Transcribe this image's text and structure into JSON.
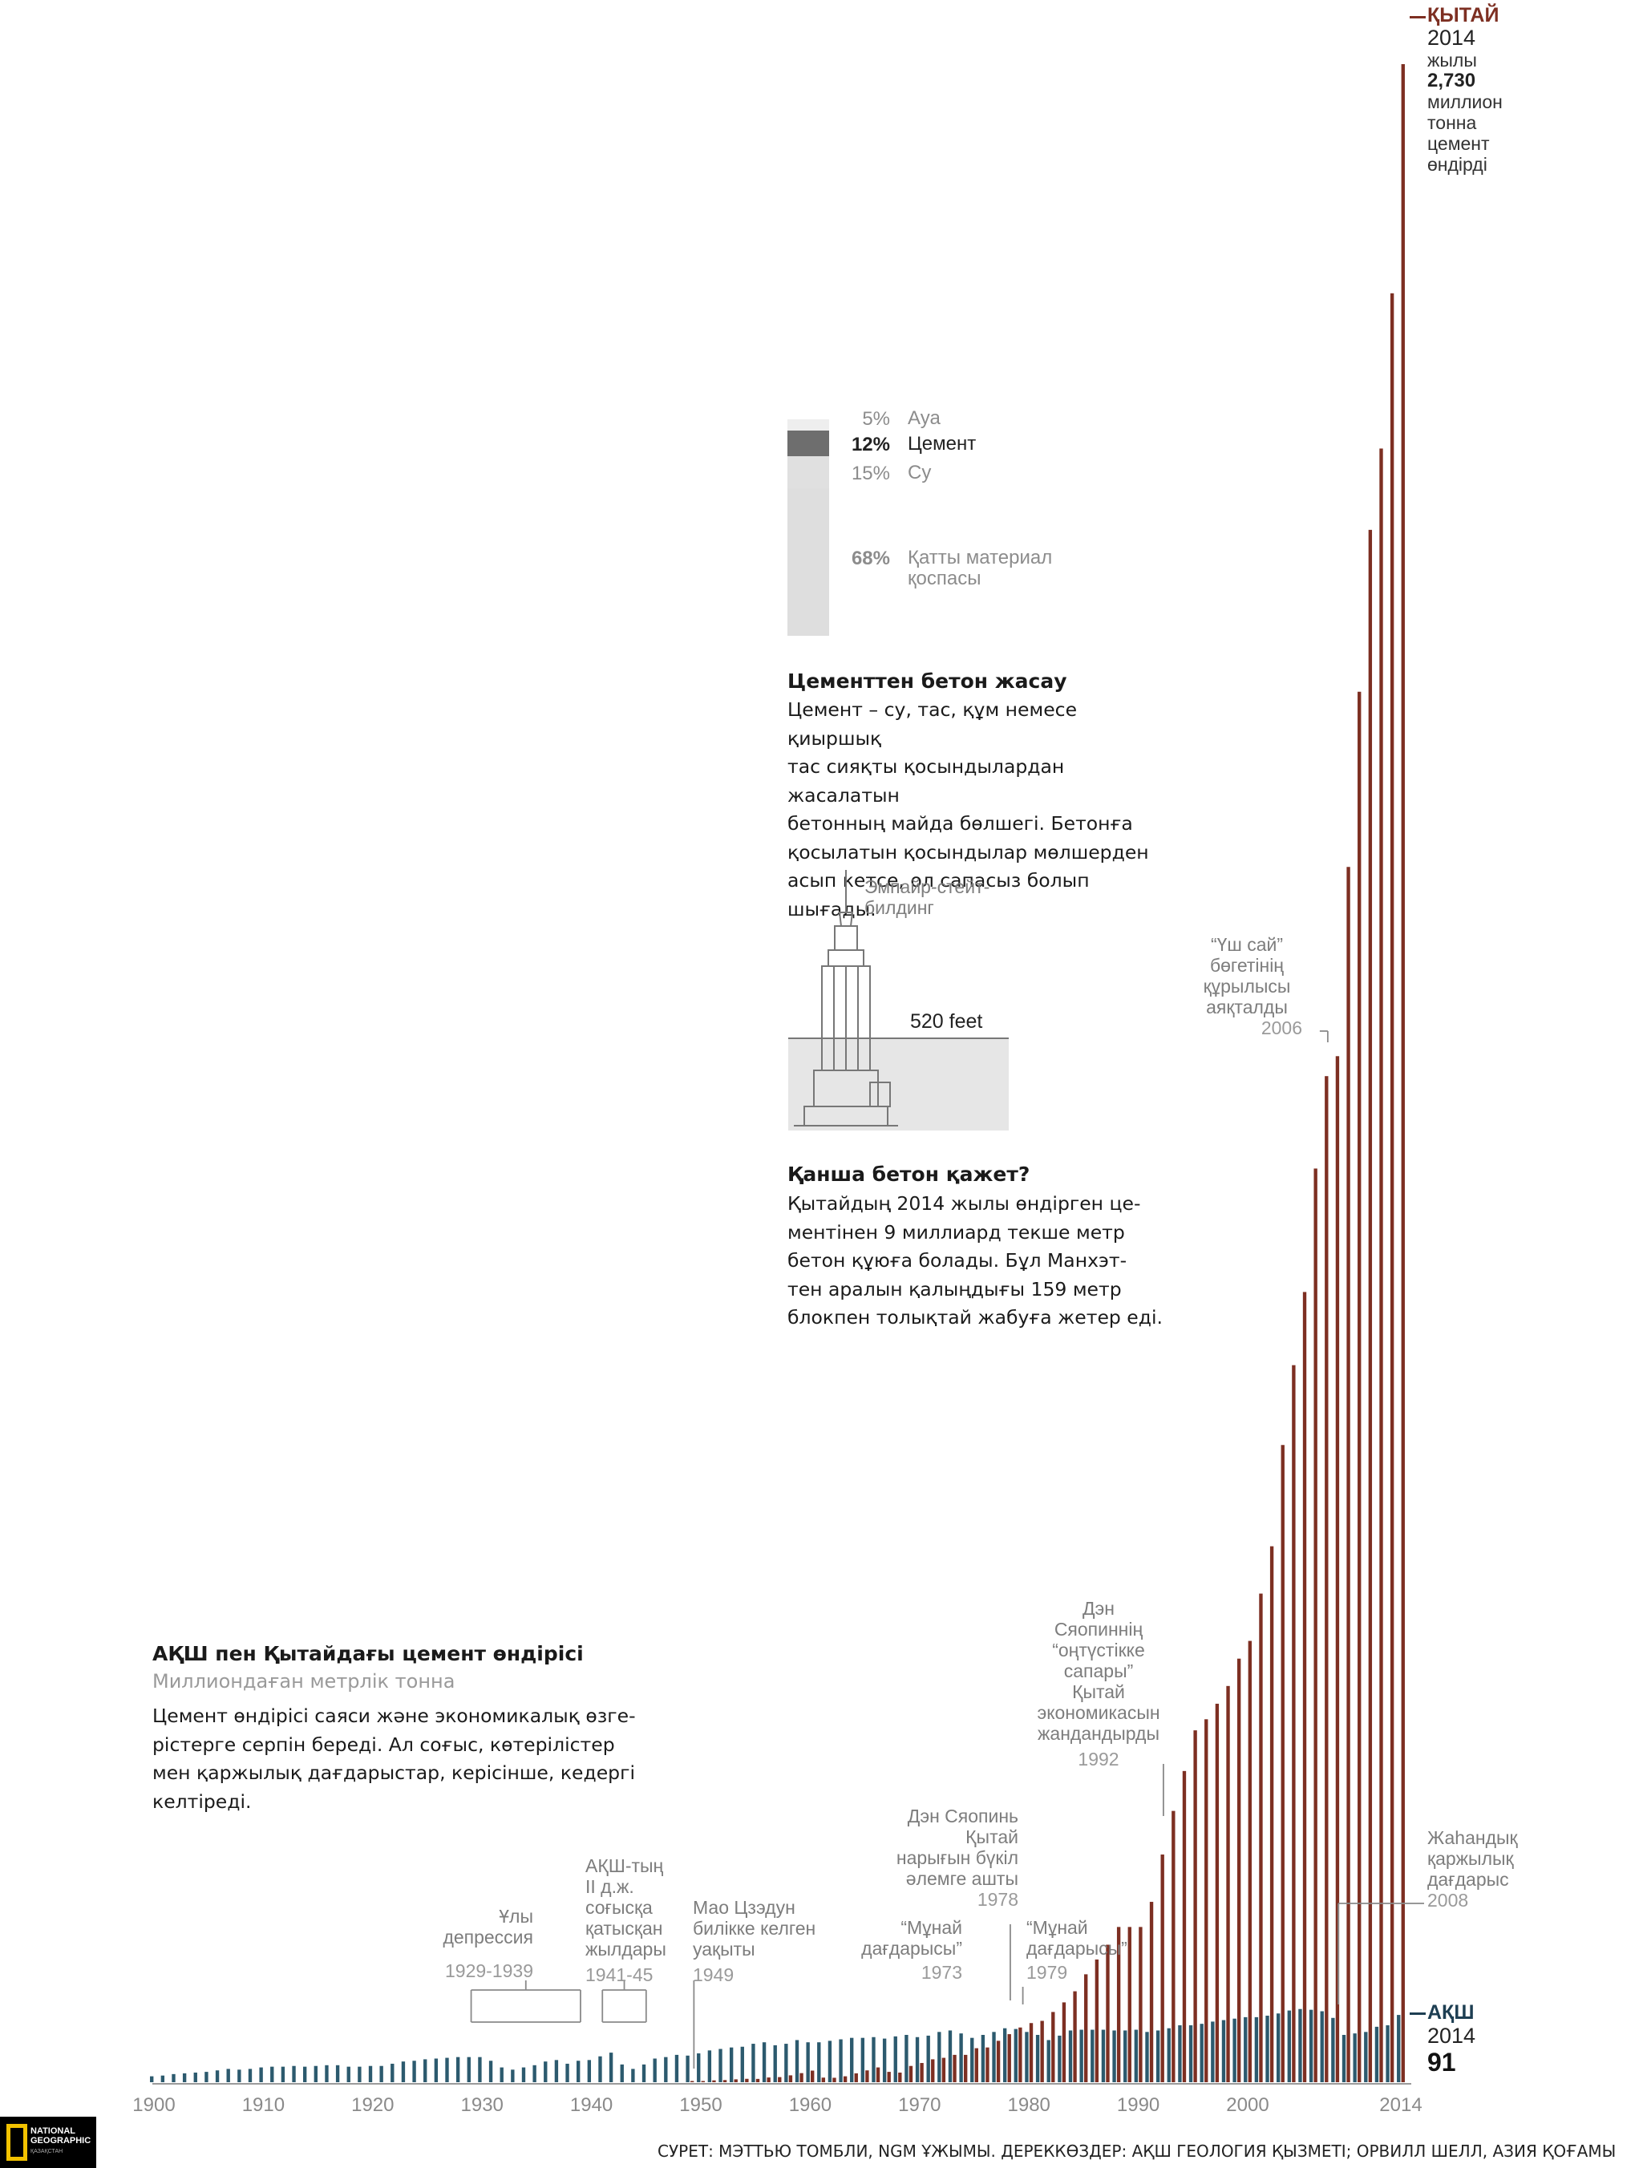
{
  "chart_data": {
    "type": "bar",
    "title": "АҚШ пен Қытайдағы цемент өндірісі",
    "subtitle": "Миллиондаған метрлік тонна",
    "description": "Цемент өндірісі саяси және экономикалық өзгерістерге серпін береді. Ал соғыс, көтерілістер мен қаржылық дағдарыстар, керісінше, кедергі келтіреді.",
    "description_lines": [
      "Цемент өндірісі саяси және экономикалық өзге-",
      "рістерге серпін береді. Ал соғыс, көтерілістер",
      "мен қаржылық дағдарыстар, керісінше, кедергі",
      "келтіреді."
    ],
    "xlim": [
      1900,
      2014
    ],
    "ylim": [
      0,
      2730
    ],
    "x_tick_labels": [
      "1900",
      "1910",
      "1920",
      "1930",
      "1940",
      "1950",
      "1960",
      "1970",
      "1980",
      "1990",
      "2000",
      "2014"
    ],
    "grid": false,
    "colors": {
      "usa": "#2c5a6e",
      "china": "#7d2f22",
      "axis": "#aaaaaa"
    },
    "series": [
      {
        "name": "АҚШ",
        "label_year": "2014",
        "label_value": "91",
        "x": [
          1900,
          1901,
          1902,
          1903,
          1904,
          1905,
          1906,
          1907,
          1908,
          1909,
          1910,
          1911,
          1912,
          1913,
          1914,
          1915,
          1916,
          1917,
          1918,
          1919,
          1920,
          1921,
          1922,
          1923,
          1924,
          1925,
          1926,
          1927,
          1928,
          1929,
          1930,
          1931,
          1932,
          1933,
          1934,
          1935,
          1936,
          1937,
          1938,
          1939,
          1940,
          1941,
          1942,
          1943,
          1944,
          1945,
          1946,
          1947,
          1948,
          1949,
          1950,
          1951,
          1952,
          1953,
          1954,
          1955,
          1956,
          1957,
          1958,
          1959,
          1960,
          1961,
          1962,
          1963,
          1964,
          1965,
          1966,
          1967,
          1968,
          1969,
          1970,
          1971,
          1972,
          1973,
          1974,
          1975,
          1976,
          1977,
          1978,
          1979,
          1980,
          1981,
          1982,
          1983,
          1984,
          1985,
          1986,
          1987,
          1988,
          1989,
          1990,
          1991,
          1992,
          1993,
          1994,
          1995,
          1996,
          1997,
          1998,
          1999,
          2000,
          2001,
          2002,
          2003,
          2004,
          2005,
          2006,
          2007,
          2008,
          2009,
          2010,
          2011,
          2012,
          2013,
          2014
        ],
        "values": [
          8,
          9,
          11,
          12,
          13,
          14,
          16,
          18,
          17,
          18,
          20,
          21,
          21,
          22,
          21,
          22,
          23,
          23,
          21,
          21,
          22,
          22,
          25,
          28,
          29,
          31,
          32,
          33,
          34,
          34,
          34,
          29,
          20,
          17,
          20,
          23,
          28,
          30,
          25,
          29,
          30,
          35,
          40,
          24,
          18,
          24,
          32,
          34,
          37,
          36,
          39,
          43,
          45,
          47,
          48,
          52,
          54,
          50,
          52,
          57,
          54,
          54,
          56,
          58,
          60,
          60,
          61,
          59,
          62,
          64,
          61,
          63,
          68,
          70,
          66,
          60,
          64,
          68,
          73,
          72,
          68,
          64,
          57,
          63,
          70,
          71,
          71,
          71,
          70,
          70,
          71,
          68,
          70,
          73,
          77,
          77,
          79,
          82,
          84,
          86,
          88,
          88,
          90,
          93,
          97,
          99,
          98,
          96,
          87,
          64,
          66,
          68,
          75,
          77,
          91
        ]
      },
      {
        "name": "ҚЫТАЙ",
        "label_year": "2014",
        "label_line1": "жылы",
        "label_value": "2,730",
        "label_rest": [
          "миллион",
          "тонна",
          "цемент",
          "өндірді"
        ],
        "x": [
          1949,
          1950,
          1951,
          1952,
          1953,
          1954,
          1955,
          1956,
          1957,
          1958,
          1959,
          1960,
          1961,
          1962,
          1963,
          1964,
          1965,
          1966,
          1967,
          1968,
          1969,
          1970,
          1971,
          1972,
          1973,
          1974,
          1975,
          1976,
          1977,
          1978,
          1979,
          1980,
          1981,
          1982,
          1983,
          1984,
          1985,
          1986,
          1987,
          1988,
          1989,
          1990,
          1991,
          1992,
          1993,
          1994,
          1995,
          1996,
          1997,
          1998,
          1999,
          2000,
          2001,
          2002,
          2003,
          2004,
          2005,
          2006,
          2007,
          2008,
          2009,
          2010,
          2011,
          2012,
          2013,
          2014
        ],
        "values": [
          1.2,
          1.4,
          2.5,
          2.9,
          3.9,
          4.6,
          4.5,
          6.4,
          6.9,
          9.3,
          12.3,
          15.7,
          6.2,
          6,
          8,
          12,
          16,
          20,
          14,
          13,
          22,
          26,
          31,
          33,
          37,
          37,
          46,
          47,
          56,
          65,
          74,
          80,
          83,
          95,
          108,
          123,
          146,
          166,
          186,
          210,
          210,
          210,
          244,
          308,
          367,
          421,
          476,
          491,
          512,
          536,
          573,
          597,
          661,
          725,
          862,
          970,
          1069,
          1236,
          1361,
          1388,
          1644,
          1881,
          2100,
          2210,
          2420,
          2730
        ]
      }
    ],
    "annotations": [
      {
        "lines": [
          "Ұлы",
          "депрессия"
        ],
        "year": "1929-1939"
      },
      {
        "lines": [
          "АҚШ-тың",
          "II д.ж.",
          "соғысқа",
          "қатысқан",
          "жылдары"
        ],
        "year": "1941-45"
      },
      {
        "lines": [
          "Мао Цзэдун",
          "билікке келген",
          "уақыты"
        ],
        "year": "1949"
      },
      {
        "lines": [
          "Дэн Сяопинь",
          "Қытай",
          "нарығын бүкіл",
          "әлемге ашты"
        ],
        "year": "1978"
      },
      {
        "lines": [
          "“Мұнай",
          "дағдарысы”"
        ],
        "year": "1973"
      },
      {
        "lines": [
          "“Мұнай",
          "дағдарысы”"
        ],
        "year": "1979"
      },
      {
        "lines": [
          "Дэн",
          "Сяопиннің",
          "“оңтүстікке",
          "сапары”",
          "Қытай",
          "экономикасын",
          "жандандырды"
        ],
        "year": "1992"
      },
      {
        "lines": [
          "“Үш сай”",
          "бөгетінің",
          "құрылысы",
          "аяқталды"
        ],
        "year": "2006"
      },
      {
        "lines": [
          "Жаһандық",
          "қаржылық",
          "дағдарыс"
        ],
        "year": "2008"
      }
    ]
  },
  "concrete_mix": {
    "title": "Цементтен бетон жасау",
    "body_lines": [
      "Цемент – су, тас, құм немесе қиыршық",
      "тас сияқты қосындылардан жасалатын",
      "бетонның майда бөлшегі. Бетонға",
      "қосылатын қосындылар мөлшерден",
      "асып кетсе, ол сапасыз болып шығады."
    ],
    "body": "Цемент – су, тас, құм немесе қиыршық тас сияқты қосындылардан жасалатын бетонның майда бөлшегі. Бетонға қосылатын қосындылар мөлшерден асып кетсе, ол сапасыз болып шығады.",
    "components": [
      {
        "pct": "5%",
        "label": "Ауа",
        "value": 5,
        "color": "#eeeeee"
      },
      {
        "pct": "12%",
        "label": "Цемент",
        "value": 12,
        "color": "#6e6e6e"
      },
      {
        "pct": "15%",
        "label": "Су",
        "value": 15,
        "color": "#dddddd"
      },
      {
        "pct": "68%",
        "label_lines": [
          "Қатты материал",
          "қоспасы"
        ],
        "value": 68,
        "color": "#dedede"
      }
    ]
  },
  "how_much": {
    "building_label_lines": [
      "Эмпайр-стейт-",
      "билдинг"
    ],
    "height_label": "520 feet",
    "title": "Қанша бетон қажет?",
    "body_lines": [
      "Қытайдың 2014 жылы өндірген це-",
      "ментінен 9 миллиард текше метр",
      "бетон құюға болады. Бұл Манхэт-",
      "тен аралын қалыңдығы 159 метр",
      "блокпен толықтай жабуға жетер еді."
    ]
  },
  "logo": {
    "line1": "NATIONAL",
    "line2": "GEOGRAPHIC",
    "line3": "ҚАЗАҚСТАН"
  },
  "credit": "СУРЕТ: МЭТТЬЮ ТОМБЛИ, NGM ҰЖЫМЫ. ДЕРЕККӨЗДЕР: АҚШ ГЕОЛОГИЯ ҚЫЗМЕТІ; ОРВИЛЛ ШЕЛЛ, АЗИЯ ҚОҒАМЫ"
}
